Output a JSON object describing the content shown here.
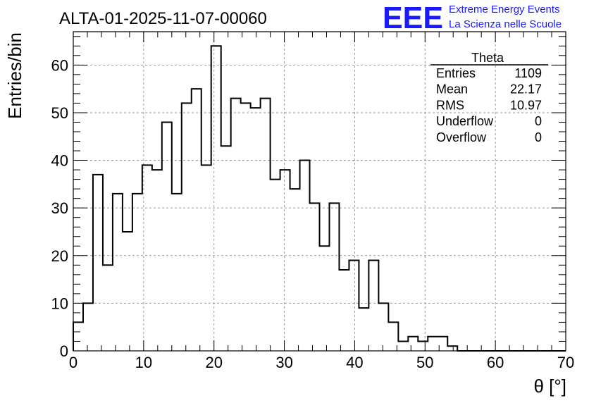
{
  "chart_data": {
    "type": "histogram",
    "title": "ALTA-01-2025-11-07-00060",
    "xlabel": "θ [°]",
    "ylabel": "Entries/bin",
    "xlim": [
      0,
      70
    ],
    "ylim": [
      0,
      67
    ],
    "bin_width": 1.4,
    "grid": true,
    "xticks": [
      0,
      10,
      20,
      30,
      40,
      50,
      60,
      70
    ],
    "yticks": [
      0,
      10,
      20,
      30,
      40,
      50,
      60
    ],
    "values": [
      6,
      10,
      37,
      18,
      33,
      25,
      33,
      39,
      38,
      48,
      33,
      52,
      55,
      39,
      64,
      43,
      53,
      52,
      51,
      53,
      36,
      38,
      34,
      40,
      31,
      22,
      31,
      17,
      19,
      9,
      19,
      10,
      6,
      2,
      3,
      2,
      3,
      3,
      1,
      0,
      0,
      0,
      0,
      0,
      0,
      0,
      0,
      0,
      0,
      0
    ],
    "stats": {
      "name": "Theta",
      "rows": [
        {
          "label": "Entries",
          "value": "1109"
        },
        {
          "label": "Mean",
          "value": "22.17"
        },
        {
          "label": "RMS",
          "value": "10.97"
        },
        {
          "label": "Underflow",
          "value": "0"
        },
        {
          "label": "Overflow",
          "value": "0"
        }
      ]
    }
  },
  "logo": {
    "mark": "EEE",
    "line1": "Extreme Energy Events",
    "line2": "La Scienza nelle Scuole"
  },
  "colors": {
    "line": "#000000",
    "grid": "#9a9a9a",
    "logo": "#1a1aff"
  }
}
